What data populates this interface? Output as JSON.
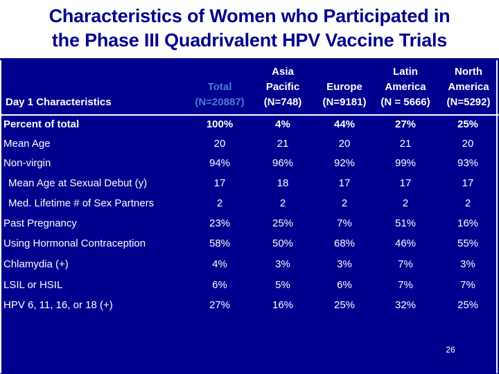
{
  "title_line1": "Characteristics of Women who Participated in",
  "title_line2": "the Phase III Quadrivalent HPV Vaccine Trials",
  "header": {
    "first": "Day 1 Characteristics",
    "cols": [
      {
        "l1": "",
        "l2": "Total",
        "l3": "(N=20887)"
      },
      {
        "l1": "Asia",
        "l2": "Pacific",
        "l3": "(N=748)"
      },
      {
        "l1": "",
        "l2": "Europe",
        "l3": "(N=9181)"
      },
      {
        "l1": "Latin",
        "l2": "America",
        "l3": "(N = 5666)"
      },
      {
        "l1": "North",
        "l2": "America",
        "l3": "(N=5292)"
      }
    ]
  },
  "rows": [
    {
      "label": "Percent of total",
      "values": [
        "100%",
        "4%",
        "44%",
        "27%",
        "25%"
      ]
    },
    {
      "label": "Mean Age",
      "values": [
        "20",
        "21",
        "20",
        "21",
        "20"
      ]
    },
    {
      "label": "Non-virgin",
      "values": [
        "94%",
        "96%",
        "92%",
        "99%",
        "93%"
      ]
    },
    {
      "label": "Mean Age at Sexual Debut (y)",
      "values": [
        "17",
        "18",
        "17",
        "17",
        "17"
      ]
    },
    {
      "label": "Med. Lifetime # of Sex Partners",
      "values": [
        "2",
        "2",
        "2",
        "2",
        "2"
      ]
    },
    {
      "label": "Past Pregnancy",
      "values": [
        "23%",
        "25%",
        "7%",
        "51%",
        "16%"
      ]
    },
    {
      "label": "Using Hormonal Contraception",
      "values": [
        "58%",
        "50%",
        "68%",
        "46%",
        "55%"
      ]
    },
    {
      "label": "Chlamydia (+)",
      "values": [
        "4%",
        "3%",
        "3%",
        "7%",
        "3%"
      ]
    },
    {
      "label": "LSIL or HSIL",
      "values": [
        "6%",
        "5%",
        "6%",
        "7%",
        "7%"
      ]
    },
    {
      "label": "HPV 6, 11, 16, or 18 (+)",
      "values": [
        "27%",
        "16%",
        "25%",
        "32%",
        "25%"
      ]
    }
  ],
  "page_number": "26"
}
